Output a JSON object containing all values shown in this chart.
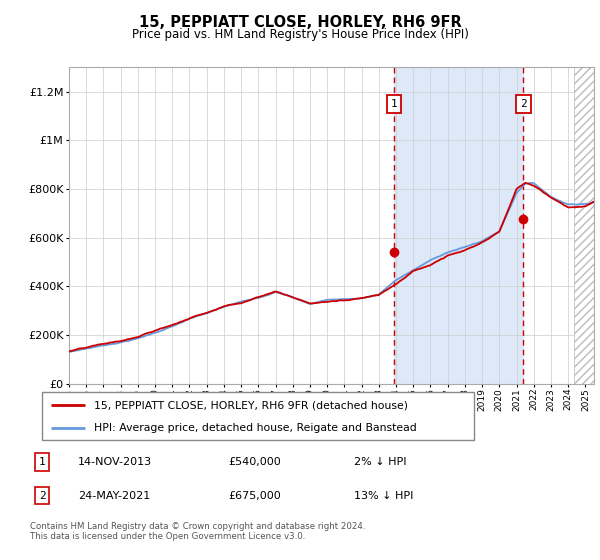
{
  "title": "15, PEPPIATT CLOSE, HORLEY, RH6 9FR",
  "subtitle": "Price paid vs. HM Land Registry's House Price Index (HPI)",
  "legend_line1": "15, PEPPIATT CLOSE, HORLEY, RH6 9FR (detached house)",
  "legend_line2": "HPI: Average price, detached house, Reigate and Banstead",
  "annotation1_date": "14-NOV-2013",
  "annotation1_price": "£540,000",
  "annotation1_hpi": "2% ↓ HPI",
  "annotation2_date": "24-MAY-2021",
  "annotation2_price": "£675,000",
  "annotation2_hpi": "13% ↓ HPI",
  "footer": "Contains HM Land Registry data © Crown copyright and database right 2024.\nThis data is licensed under the Open Government Licence v3.0.",
  "hpi_color": "#6699dd",
  "price_color": "#cc0000",
  "sale1_x": 2013.87,
  "sale1_y": 540000,
  "sale2_x": 2021.39,
  "sale2_y": 675000,
  "xmin": 1995,
  "xmax": 2025.5,
  "ymin": 0,
  "ymax": 1300000,
  "shade_color": "#dde8f8",
  "hatch_region_start": 2024.33,
  "yticks": [
    0,
    200000,
    400000,
    600000,
    800000,
    1000000,
    1200000
  ],
  "ytick_labels": [
    "£0",
    "£200K",
    "£400K",
    "£600K",
    "£800K",
    "£1M",
    "£1.2M"
  ]
}
